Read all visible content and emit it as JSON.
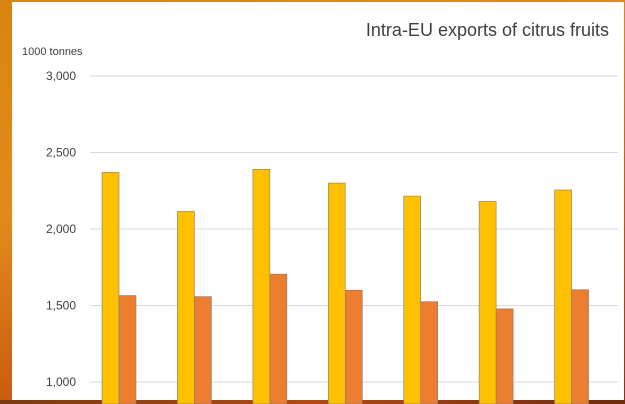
{
  "chart_data": {
    "type": "bar",
    "title": "Intra-EU exports of citrus fruits",
    "unit_label": "1000 tonnes",
    "xlabel": "",
    "ylabel": "",
    "ylim": [
      1000,
      3000
    ],
    "yticks": [
      {
        "value": 1000,
        "label": "1,000"
      },
      {
        "value": 1500,
        "label": "1,500"
      },
      {
        "value": 2000,
        "label": "2,000"
      },
      {
        "value": 2500,
        "label": "2,500"
      },
      {
        "value": 3000,
        "label": "3,000"
      }
    ],
    "grid": true,
    "categories": [
      "",
      "",
      "",
      "",
      "",
      "",
      ""
    ],
    "series": [
      {
        "values": [
          2370,
          2115,
          2390,
          2300,
          2215,
          2180,
          2255
        ],
        "color": "#ffc000"
      },
      {
        "values": [
          1565,
          1558,
          1705,
          1600,
          1525,
          1478,
          1603
        ],
        "color": "#ed7d31"
      }
    ]
  }
}
